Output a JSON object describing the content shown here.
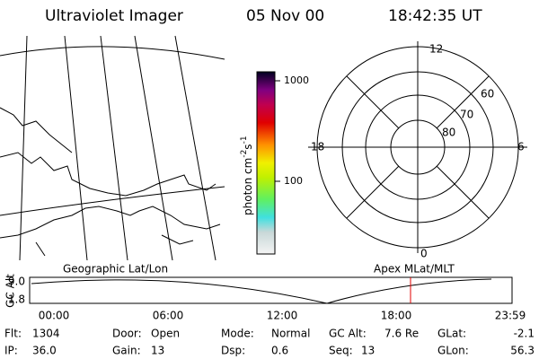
{
  "header": {
    "instrument": "Ultraviolet Imager",
    "date": "05 Nov 00",
    "time": "18:42:35 UT"
  },
  "colorbar": {
    "unit": {
      "base": "photon cm",
      "exp1": "-2",
      "mid": "s",
      "exp2": "-1"
    },
    "ticks": [
      "1000",
      "100"
    ]
  },
  "polar": {
    "mlt_labels": {
      "top": "12",
      "left": "18",
      "right": "6",
      "bottom": "0"
    },
    "lat_labels": [
      "60",
      "70",
      "80"
    ]
  },
  "timeline": {
    "left_title": "Geographic Lat/Lon",
    "right_title": "Apex MLat/MLT",
    "y_title": "GC Alt",
    "y_labels": [
      "9.0",
      "1.8"
    ],
    "x_labels": [
      "00:00",
      "06:00",
      "12:00",
      "18:00",
      "23:59"
    ]
  },
  "info": {
    "rows": [
      [
        {
          "label": "Flt:",
          "value": "1304"
        },
        {
          "label": "Door:",
          "value": "Open"
        },
        {
          "label": "Mode:",
          "value": "Normal"
        },
        {
          "label": "GC Alt:",
          "value": "7.6 Re"
        },
        {
          "label": "GLat:",
          "value": "-2.1"
        }
      ],
      [
        {
          "label": "IP:",
          "value": "36.0"
        },
        {
          "label": "Gain:",
          "value": "13"
        },
        {
          "label": "Dsp:",
          "value": "0.6"
        },
        {
          "label": "Seq:",
          "value": "13"
        },
        {
          "label": "GLon:",
          "value": "56.3"
        }
      ]
    ]
  }
}
